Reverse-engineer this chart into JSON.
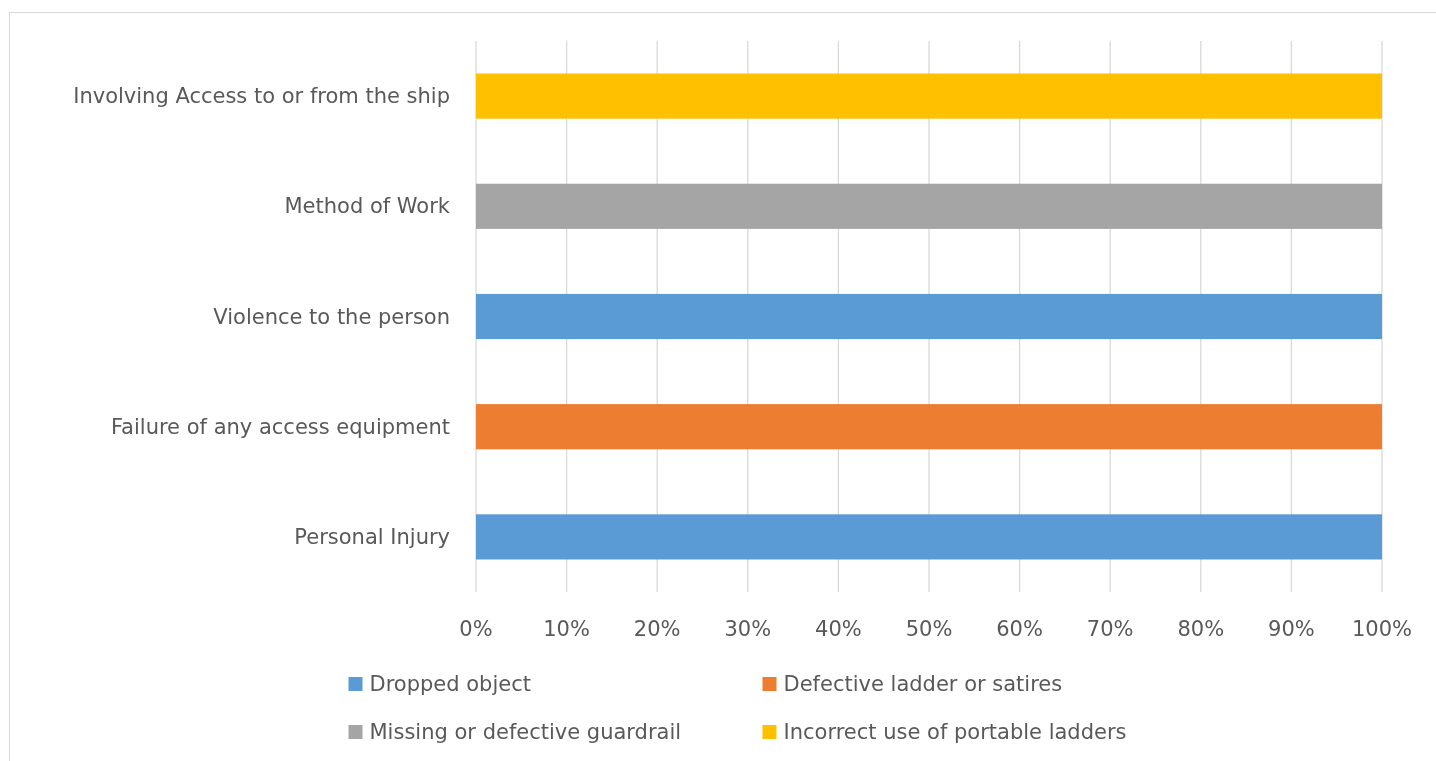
{
  "chart_data": {
    "type": "bar",
    "orientation": "horizontal",
    "stacked": true,
    "categories": [
      "Involving Access to or from the ship",
      "Method of Work",
      "Violence to the person",
      "Failure of any access equipment",
      "Personal Injury"
    ],
    "series": [
      {
        "name": "Dropped object",
        "color": "#5b9bd5",
        "values": [
          0,
          0,
          100,
          0,
          100
        ]
      },
      {
        "name": "Defective ladder or satires",
        "color": "#ed7d31",
        "values": [
          0,
          0,
          0,
          100,
          0
        ]
      },
      {
        "name": "Missing or defective guardrail",
        "color": "#a5a5a5",
        "values": [
          0,
          100,
          0,
          0,
          0
        ]
      },
      {
        "name": "Incorrect use of portable ladders",
        "color": "#ffc000",
        "values": [
          100,
          0,
          0,
          0,
          0
        ]
      }
    ],
    "xlim": [
      0,
      100
    ],
    "xticks": [
      {
        "value": 0,
        "label": "0%"
      },
      {
        "value": 10,
        "label": "10%"
      },
      {
        "value": 20,
        "label": "20%"
      },
      {
        "value": 30,
        "label": "30%"
      },
      {
        "value": 40,
        "label": "40%"
      },
      {
        "value": 50,
        "label": "50%"
      },
      {
        "value": 60,
        "label": "60%"
      },
      {
        "value": 70,
        "label": "70%"
      },
      {
        "value": 80,
        "label": "80%"
      },
      {
        "value": 90,
        "label": "90%"
      },
      {
        "value": 100,
        "label": "100%"
      }
    ],
    "grid": "x",
    "legend": "bottom"
  }
}
